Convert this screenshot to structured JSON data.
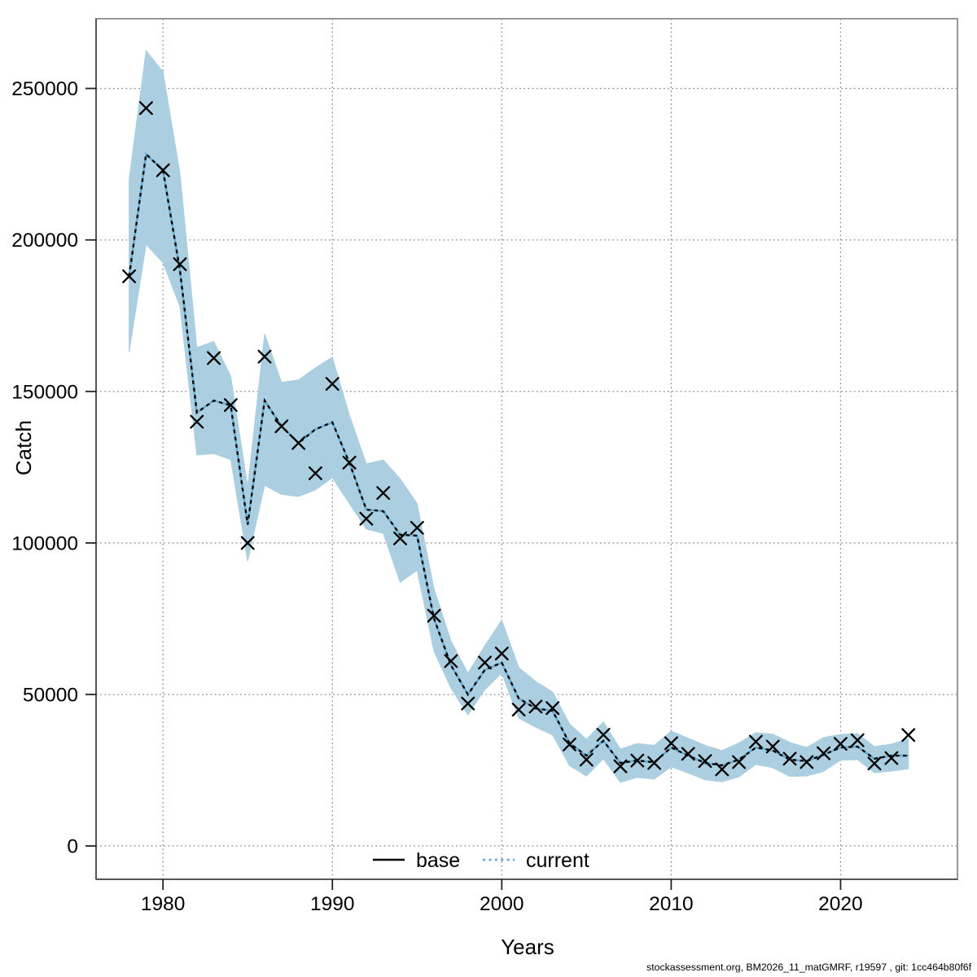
{
  "chart_data": {
    "type": "line",
    "title": "",
    "xlabel": "Years",
    "ylabel": "Catch",
    "grid": true,
    "legend_position": "bottom-center-inside",
    "legend": [
      {
        "label": "base",
        "style": "solid-black-line"
      },
      {
        "label": "current",
        "style": "dotted-blue-line"
      }
    ],
    "x_ticks": [
      1980,
      1990,
      2000,
      2010,
      2020
    ],
    "x_tick_labels": [
      "1980",
      "1990",
      "2000",
      "2010",
      "2020"
    ],
    "y_ticks": [
      0,
      50000,
      100000,
      150000,
      200000,
      250000
    ],
    "y_tick_labels": [
      "0",
      "50000",
      "100000",
      "150000",
      "200000",
      "250000"
    ],
    "xlim": [
      1976.05,
      2026.9
    ],
    "ylim": [
      -11000,
      273000
    ],
    "x": [
      1978,
      1979,
      1980,
      1981,
      1982,
      1983,
      1984,
      1985,
      1986,
      1987,
      1988,
      1989,
      1990,
      1991,
      1992,
      1993,
      1994,
      1995,
      1996,
      1997,
      1998,
      1999,
      2000,
      2001,
      2002,
      2003,
      2004,
      2005,
      2006,
      2007,
      2008,
      2009,
      2010,
      2011,
      2012,
      2013,
      2014,
      2015,
      2016,
      2017,
      2018,
      2019,
      2020,
      2021,
      2022,
      2023,
      2024
    ],
    "series": [
      {
        "name": "observed-catch",
        "marker": "x",
        "values": [
          188000,
          243500,
          223000,
          192000,
          140000,
          161000,
          145500,
          100000,
          161500,
          138500,
          133000,
          123000,
          152500,
          126500,
          108000,
          116500,
          101500,
          105000,
          76000,
          61000,
          47000,
          60500,
          63500,
          45000,
          46000,
          45500,
          33500,
          28500,
          36700,
          26300,
          28200,
          27400,
          33900,
          30400,
          28000,
          25300,
          27700,
          34400,
          32800,
          28800,
          27700,
          30600,
          33700,
          34900,
          27200,
          29000,
          36600
        ]
      },
      {
        "name": "current-fit",
        "line": "dotted",
        "values": [
          188000,
          228300,
          223000,
          190000,
          143000,
          147000,
          145400,
          106000,
          147000,
          138500,
          133000,
          137500,
          139800,
          126500,
          111000,
          110500,
          102700,
          102400,
          75000,
          59700,
          50000,
          58100,
          60500,
          48700,
          45400,
          44600,
          33900,
          29800,
          34700,
          27400,
          28200,
          27600,
          32500,
          29800,
          27400,
          26600,
          28500,
          32500,
          31500,
          28500,
          28000,
          30100,
          32500,
          32800,
          28800,
          29800,
          29800
        ]
      }
    ],
    "band": {
      "name": "confidence-ribbon",
      "lo": [
        163000,
        198500,
        192500,
        178000,
        129000,
        129500,
        127500,
        94000,
        119000,
        116000,
        115300,
        117500,
        121500,
        113000,
        104600,
        103200,
        87000,
        91000,
        64200,
        52100,
        43300,
        51600,
        57000,
        42200,
        39200,
        36600,
        26500,
        23100,
        28800,
        21000,
        22600,
        22100,
        26100,
        24100,
        21800,
        21200,
        22800,
        26900,
        25800,
        23000,
        23100,
        24600,
        28300,
        28500,
        24200,
        24700,
        25500
      ],
      "hi": [
        220000,
        262500,
        255500,
        222000,
        164500,
        166500,
        155000,
        118500,
        169000,
        153000,
        153800,
        157800,
        161300,
        142200,
        126100,
        127400,
        121200,
        113000,
        84900,
        67700,
        57000,
        66100,
        74500,
        58900,
        54300,
        50800,
        40300,
        35200,
        40900,
        32000,
        33800,
        33200,
        37900,
        35600,
        33200,
        31500,
        34000,
        37400,
        36900,
        34200,
        32500,
        35800,
        36800,
        37100,
        32800,
        33600,
        35500
      ]
    },
    "caption": "stockassessment.org, BM2026_11_matGMRF, r19597 , git: 1cc464b80f6f",
    "colors": {
      "ribbon": "#abcfe0",
      "current_line_blue": "#69acd0",
      "base_line": "#000000",
      "marker": "#000000",
      "grid": "#8a8a8a",
      "box": "#979797",
      "axis": "#555555",
      "text": "#000000"
    }
  }
}
